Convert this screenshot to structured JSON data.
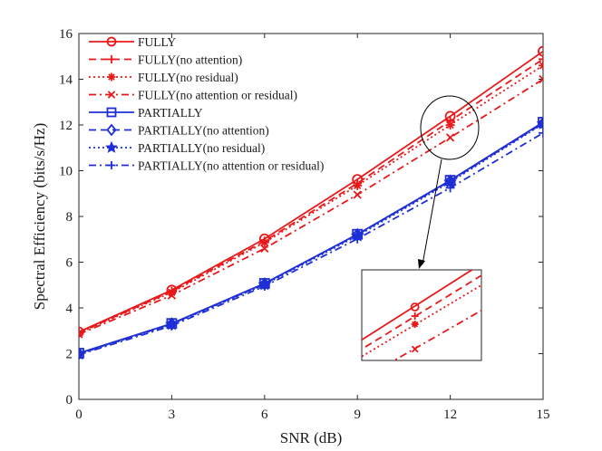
{
  "chart_data": {
    "type": "line",
    "title": "",
    "xlabel": "SNR (dB)",
    "ylabel": "Spectral Efficiency (bits/s/Hz)",
    "x": [
      0,
      3,
      6,
      9,
      12,
      15
    ],
    "xlim": [
      0,
      15
    ],
    "ylim": [
      0,
      16
    ],
    "xticks": [
      "0",
      "3",
      "6",
      "9",
      "12",
      "15"
    ],
    "yticks": [
      "0",
      "2",
      "4",
      "6",
      "8",
      "10",
      "12",
      "14",
      "16"
    ],
    "grid": false,
    "legend_position": "top-left",
    "series": [
      {
        "name": "FULLY",
        "color": "#e8191b",
        "dash": "solid",
        "marker": "circle",
        "values": [
          2.95,
          4.78,
          7.02,
          9.62,
          12.38,
          15.22
        ]
      },
      {
        "name": "FULLY(no attention)",
        "color": "#e8191b",
        "dash": "dashed",
        "marker": "plus",
        "values": [
          2.92,
          4.72,
          6.92,
          9.45,
          12.18,
          14.88
        ]
      },
      {
        "name": "FULLY(no residual)",
        "color": "#e8191b",
        "dash": "dotted",
        "marker": "asterisk",
        "values": [
          2.9,
          4.68,
          6.86,
          9.35,
          12.0,
          14.6
        ]
      },
      {
        "name": "FULLY(no attention or residual)",
        "color": "#e8191b",
        "dash": "dashdot",
        "marker": "x",
        "values": [
          2.85,
          4.55,
          6.6,
          8.95,
          11.45,
          14.0
        ]
      },
      {
        "name": "PARTIALLY",
        "color": "#1f2fd6",
        "dash": "solid",
        "marker": "square",
        "values": [
          2.02,
          3.32,
          5.07,
          7.22,
          9.58,
          12.12
        ]
      },
      {
        "name": "PARTIALLY(no attention)",
        "color": "#1f2fd6",
        "dash": "dashed",
        "marker": "diamond",
        "values": [
          2.0,
          3.3,
          5.05,
          7.2,
          9.55,
          12.08
        ]
      },
      {
        "name": "PARTIALLY(no residual)",
        "color": "#1f2fd6",
        "dash": "dotted",
        "marker": "star",
        "values": [
          1.98,
          3.28,
          5.02,
          7.15,
          9.5,
          12.05
        ]
      },
      {
        "name": "PARTIALLY(no attention or residual)",
        "color": "#1f2fd6",
        "dash": "dashdot",
        "marker": "plus",
        "values": [
          1.95,
          3.22,
          4.95,
          7.02,
          9.25,
          11.65
        ]
      }
    ],
    "annotations": [
      {
        "type": "ellipse",
        "target": "SNR = 12 dB, FULLY variants"
      },
      {
        "type": "inset_zoom",
        "target": "FULLY curves near SNR = 12 dB"
      }
    ]
  }
}
